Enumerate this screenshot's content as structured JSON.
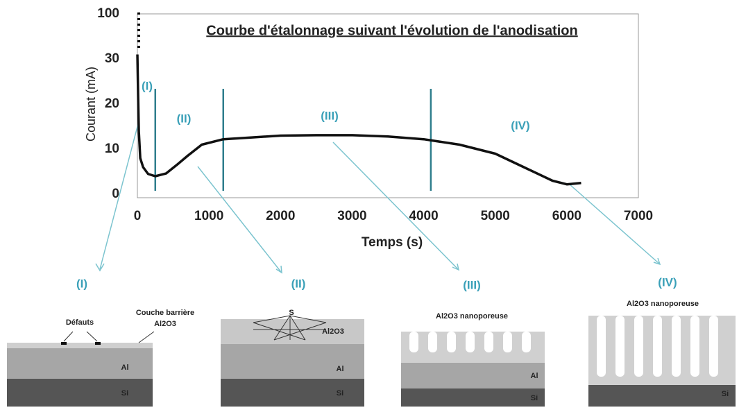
{
  "chart_data": {
    "type": "line",
    "title": "Courbe d'étalonnage suivant l'évolution de l'anodisation",
    "x_label": "Temps (s)",
    "y_label": "Courant (mA)",
    "x": [
      0,
      10,
      20,
      40,
      80,
      150,
      250,
      400,
      550,
      700,
      900,
      1200,
      1600,
      2000,
      2500,
      3000,
      3500,
      4000,
      4500,
      5000,
      5400,
      5800,
      6000,
      6200
    ],
    "values": [
      31,
      22,
      14,
      8,
      6,
      4.5,
      4,
      4.6,
      6.5,
      8.5,
      11,
      12.2,
      12.6,
      13,
      13.1,
      13.1,
      12.8,
      12.2,
      11,
      9,
      6,
      3,
      2.2,
      2.5
    ],
    "color": "#111111",
    "xlim": [
      0,
      7000
    ],
    "xticks": [
      0,
      1000,
      2000,
      3000,
      4000,
      5000,
      6000,
      7000
    ],
    "ylim": [
      0,
      40
    ],
    "yticks": [
      0,
      10,
      20,
      30
    ],
    "y_break_tick": 100,
    "phase_boundaries": [
      250,
      1200,
      4100
    ],
    "boundary_color": "#2e7d8c",
    "phase_labels": [
      "(I)",
      "(II)",
      "(III)",
      "(IV)"
    ]
  },
  "panels": [
    {
      "label": "(I)",
      "texts": [
        "Défauts",
        "Couche barrière",
        "Al2O3",
        "Al",
        "Si"
      ]
    },
    {
      "label": "(II)",
      "texts": [
        "S",
        "Al2O3",
        "Al",
        "Si"
      ]
    },
    {
      "label": "(III)",
      "texts": [
        "Al2O3 nanoporeuse",
        "Al",
        "Si"
      ]
    },
    {
      "label": "(IV)",
      "texts": [
        "Al2O3 nanoporeuse",
        "Si"
      ]
    }
  ]
}
